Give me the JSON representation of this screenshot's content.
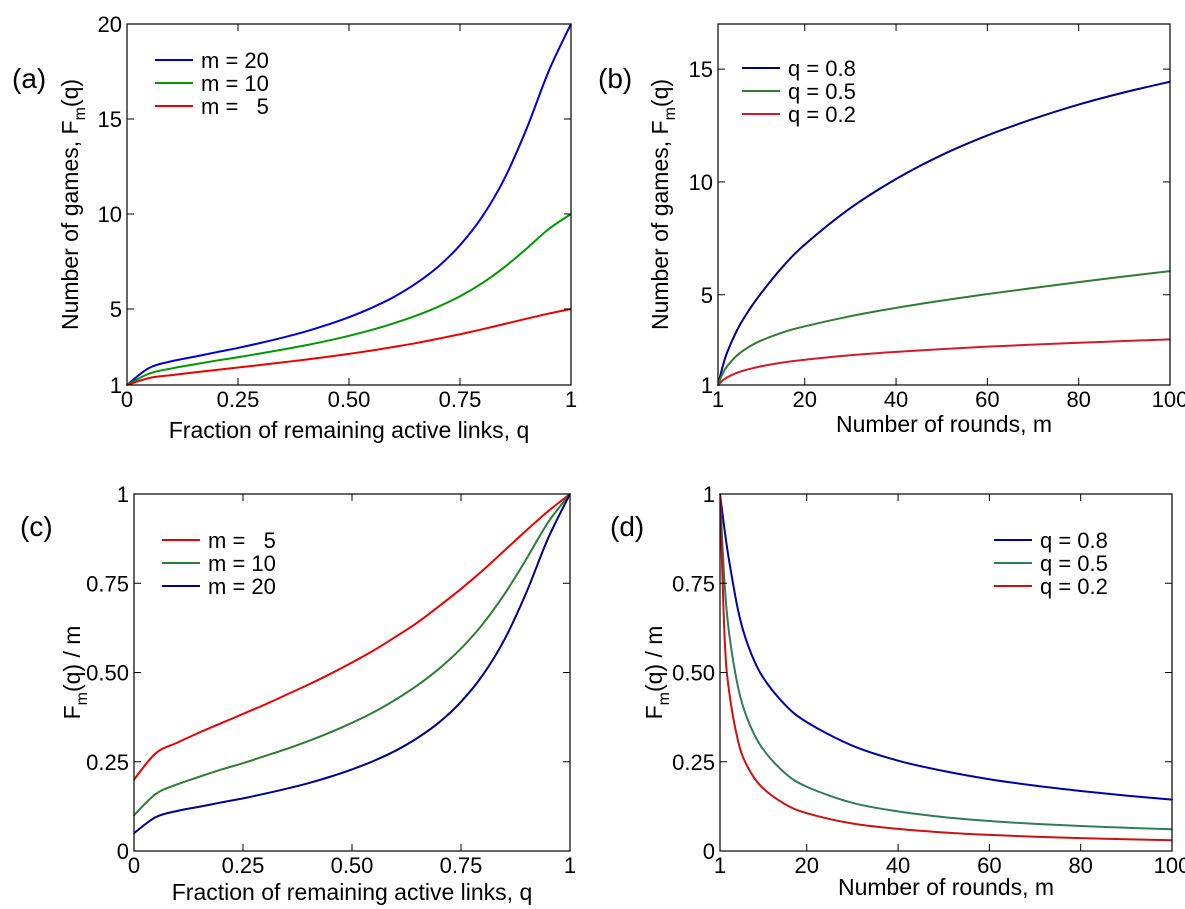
{
  "chart_data": [
    {
      "panel_label": "(a)",
      "type": "line",
      "xlabel": "Fraction of remaining active links, q",
      "ylabel": "Number of games, F_m(q)",
      "ylabel_parts": {
        "main": "Number of games, F",
        "sub": "m",
        "rest": "(q)"
      },
      "xlim": [
        0,
        1
      ],
      "ylim": [
        1,
        20
      ],
      "xticks": [
        0,
        0.25,
        0.5,
        0.75,
        1
      ],
      "xtick_labels": [
        "0",
        "0.25",
        "0.50",
        "0.75",
        "1"
      ],
      "yticks": [
        1,
        5,
        10,
        15,
        20
      ],
      "ytick_labels": [
        "1",
        "5",
        "10",
        "15",
        "20"
      ],
      "legend": "top-left",
      "x": [
        0,
        0.05,
        0.1,
        0.15,
        0.2,
        0.25,
        0.3,
        0.35,
        0.4,
        0.45,
        0.5,
        0.55,
        0.6,
        0.65,
        0.7,
        0.75,
        0.8,
        0.85,
        0.9,
        0.95,
        1
      ],
      "series": [
        {
          "name": "m = 20",
          "legend_text": "m = 20",
          "color": "#0000dd",
          "values": [
            1,
            1.9,
            2.25,
            2.48,
            2.72,
            2.95,
            3.21,
            3.49,
            3.8,
            4.16,
            4.57,
            5.05,
            5.62,
            6.33,
            7.21,
            8.36,
            9.86,
            11.86,
            14.49,
            17.53,
            20
          ]
        },
        {
          "name": "m = 10",
          "legend_text": "m = 10",
          "color": "#009900",
          "values": [
            1,
            1.6,
            1.87,
            2.08,
            2.28,
            2.46,
            2.66,
            2.86,
            3.08,
            3.32,
            3.59,
            3.89,
            4.24,
            4.64,
            5.11,
            5.67,
            6.36,
            7.2,
            8.18,
            9.21,
            10
          ]
        },
        {
          "name": "m = 5",
          "legend_text": "m =   5",
          "color": "#ee0000",
          "values": [
            1,
            1.37,
            1.52,
            1.66,
            1.79,
            1.92,
            2.05,
            2.19,
            2.33,
            2.48,
            2.64,
            2.81,
            3.0,
            3.2,
            3.43,
            3.67,
            3.93,
            4.21,
            4.49,
            4.76,
            5
          ]
        }
      ]
    },
    {
      "panel_label": "(b)",
      "type": "line",
      "xlabel": "Number of rounds, m",
      "ylabel": "Number of games, F_m(q)",
      "ylabel_parts": {
        "main": "Number of games, F",
        "sub": "m",
        "rest": "(q)"
      },
      "xlim": [
        1,
        100
      ],
      "ylim": [
        1,
        17
      ],
      "xticks": [
        1,
        20,
        40,
        60,
        80,
        100
      ],
      "xtick_labels": [
        "1",
        "20",
        "40",
        "60",
        "80",
        "100"
      ],
      "yticks": [
        1,
        5,
        10,
        15
      ],
      "ytick_labels": [
        "1",
        "5",
        "10",
        "15"
      ],
      "legend": "top-left",
      "x": [
        1,
        2,
        3,
        5,
        7,
        10,
        15,
        20,
        30,
        40,
        50,
        60,
        70,
        80,
        90,
        100
      ],
      "series": [
        {
          "name": "q = 0.8",
          "legend_text": "q = 0.8",
          "color": "#00008b",
          "values": [
            1,
            1.8,
            2.44,
            3.36,
            4.07,
            4.95,
            6.2,
            7.22,
            8.84,
            10.13,
            11.19,
            12.06,
            12.79,
            13.43,
            13.97,
            14.44
          ]
        },
        {
          "name": "q = 0.5",
          "legend_text": "q = 0.5",
          "color": "#2e7d32",
          "values": [
            1,
            1.5,
            1.83,
            2.28,
            2.59,
            2.93,
            3.32,
            3.6,
            4.05,
            4.42,
            4.74,
            5.03,
            5.3,
            5.56,
            5.81,
            6.05
          ]
        },
        {
          "name": "q = 0.2",
          "legend_text": "q = 0.2",
          "color": "#d11a2a",
          "values": [
            1,
            1.2,
            1.34,
            1.53,
            1.66,
            1.81,
            1.99,
            2.12,
            2.32,
            2.47,
            2.59,
            2.7,
            2.79,
            2.87,
            2.95,
            3.02
          ]
        }
      ]
    },
    {
      "panel_label": "(c)",
      "type": "line",
      "xlabel": "Fraction of remaining active links, q",
      "ylabel": "F_m(q) / m",
      "ylabel_parts": {
        "main": "F",
        "sub": "m",
        "rest": "(q) / m"
      },
      "xlim": [
        0,
        1
      ],
      "ylim": [
        0,
        1
      ],
      "xticks": [
        0,
        0.25,
        0.5,
        0.75,
        1
      ],
      "xtick_labels": [
        "0",
        "0.25",
        "0.50",
        "0.75",
        "1"
      ],
      "yticks": [
        0,
        0.25,
        0.5,
        0.75,
        1
      ],
      "ytick_labels": [
        "0",
        "0.25",
        "0.50",
        "0.75",
        "1"
      ],
      "legend": "top-left",
      "x": [
        0,
        0.05,
        0.1,
        0.15,
        0.2,
        0.25,
        0.3,
        0.35,
        0.4,
        0.45,
        0.5,
        0.55,
        0.6,
        0.65,
        0.7,
        0.75,
        0.8,
        0.85,
        0.9,
        0.95,
        1
      ],
      "series": [
        {
          "name": "m = 5",
          "legend_text": "m =   5",
          "color": "#ee0000",
          "values": [
            0.2,
            0.274,
            0.304,
            0.332,
            0.358,
            0.384,
            0.41,
            0.438,
            0.466,
            0.496,
            0.528,
            0.562,
            0.6,
            0.64,
            0.686,
            0.734,
            0.786,
            0.842,
            0.898,
            0.952,
            1.0
          ]
        },
        {
          "name": "m = 10",
          "legend_text": "m = 10",
          "color": "#2e7d32",
          "values": [
            0.1,
            0.16,
            0.187,
            0.208,
            0.228,
            0.246,
            0.266,
            0.286,
            0.308,
            0.332,
            0.359,
            0.389,
            0.424,
            0.464,
            0.511,
            0.567,
            0.636,
            0.72,
            0.818,
            0.921,
            1.0
          ]
        },
        {
          "name": "m = 20",
          "legend_text": "m = 20",
          "color": "#00008b",
          "values": [
            0.05,
            0.095,
            0.1125,
            0.124,
            0.136,
            0.1475,
            0.1605,
            0.1745,
            0.19,
            0.208,
            0.2285,
            0.2525,
            0.281,
            0.3165,
            0.3605,
            0.418,
            0.493,
            0.593,
            0.7245,
            0.8765,
            1.0
          ]
        }
      ]
    },
    {
      "panel_label": "(d)",
      "type": "line",
      "xlabel": "Number of rounds, m",
      "ylabel": "F_m(q) / m",
      "ylabel_parts": {
        "main": "F",
        "sub": "m",
        "rest": "(q) / m"
      },
      "xlim": [
        1,
        100
      ],
      "ylim": [
        0,
        1
      ],
      "xticks": [
        1,
        20,
        40,
        60,
        80,
        100
      ],
      "xtick_labels": [
        "1",
        "20",
        "40",
        "60",
        "80",
        "100"
      ],
      "yticks": [
        0,
        0.25,
        0.5,
        0.75,
        1
      ],
      "ytick_labels": [
        "0",
        "0.25",
        "0.50",
        "0.75",
        "1"
      ],
      "legend": "top-right",
      "x": [
        1,
        2,
        3,
        5,
        7,
        10,
        15,
        20,
        30,
        40,
        50,
        60,
        70,
        80,
        90,
        100
      ],
      "series": [
        {
          "name": "q = 0.8",
          "legend_text": "q = 0.8",
          "color": "#0000aa",
          "values": [
            1.0,
            0.9,
            0.813,
            0.672,
            0.581,
            0.495,
            0.413,
            0.361,
            0.295,
            0.253,
            0.224,
            0.201,
            0.183,
            0.168,
            0.155,
            0.144
          ]
        },
        {
          "name": "q = 0.5",
          "legend_text": "q = 0.5",
          "color": "#2e7d5a",
          "values": [
            1.0,
            0.75,
            0.61,
            0.456,
            0.37,
            0.293,
            0.221,
            0.18,
            0.135,
            0.111,
            0.095,
            0.084,
            0.076,
            0.07,
            0.065,
            0.061
          ]
        },
        {
          "name": "q = 0.2",
          "legend_text": "q = 0.2",
          "color": "#cc1111",
          "values": [
            1.0,
            0.6,
            0.447,
            0.306,
            0.237,
            0.181,
            0.133,
            0.106,
            0.077,
            0.062,
            0.052,
            0.045,
            0.04,
            0.036,
            0.033,
            0.03
          ]
        }
      ]
    }
  ]
}
